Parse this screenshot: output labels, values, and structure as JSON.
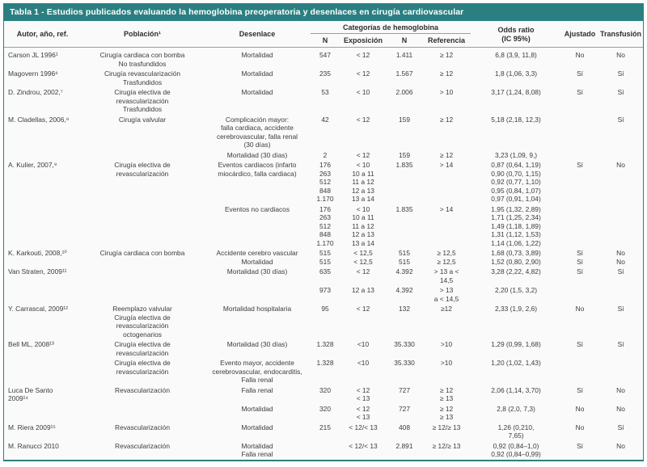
{
  "page": {
    "title_bar": "Tabla 1 - Estudios publicados evaluando la hemoglobina preoperatoria y desenlaces en cirugía cardiovascular"
  },
  "colors": {
    "teal": "#2b7f81",
    "rule": "#9e9e9e",
    "text": "#3c3c3c",
    "table_bg": "#fafafa"
  },
  "headers": {
    "author": "Autor, año, ref.",
    "population": "Población¹",
    "outcome": "Desenlace",
    "hb_group": "Categorías de hemoglobina",
    "n_exposure": "N",
    "exposure": "Exposición",
    "n_reference": "N",
    "reference": "Referencia",
    "odds_ratio": "Odds ratio\n(IC 95%)",
    "adjusted": "Ajustado",
    "transfusion": "Transfusión"
  },
  "rows": [
    {
      "author": "Carson JL 1996¹",
      "population": "Cirugía cardiaca con bomba\nNo trasfundidos",
      "outcome": "Mortalidad",
      "n1": "547",
      "exposure": "< 12",
      "n2": "1.411",
      "reference": "≥ 12",
      "odds": "6,8 (3,9, 11,8)",
      "adjusted": "No",
      "transfusion": "No"
    },
    {
      "author": "Magovern 1996⁶",
      "population": "Cirugía revascularización\nTrasfundidos",
      "outcome": "Mortalidad",
      "n1": "235",
      "exposure": "< 12",
      "n2": "1.567",
      "reference": "≥ 12",
      "odds": "1,8 (1,06, 3,3)",
      "adjusted": "Sí",
      "transfusion": "Sí"
    },
    {
      "author": "D. Zindrou, 2002,⁷",
      "population": "Cirugía electiva de\nrevascularización\nTrasfundidos",
      "outcome": "Mortalidad",
      "n1": "53",
      "exposure": "< 10",
      "n2": "2.006",
      "reference": "> 10",
      "odds": "3,17 (1,24, 8,08)",
      "adjusted": "Sí",
      "transfusion": "Sí"
    },
    {
      "author": "M. Cladellas, 2006,⁸",
      "population": "Cirugía valvular",
      "outcome": "Complicación mayor:\nfalla cardiaca, accidente\ncerebrovascular, falla renal\n(30 días)",
      "n1": "42",
      "exposure": "< 12",
      "n2": "159",
      "reference": "≥ 12",
      "odds": "5,18 (2,18, 12,3)",
      "adjusted": "",
      "transfusion": "Sí"
    },
    {
      "author": "",
      "population": "",
      "outcome": "Mortalidad (30 días)",
      "n1": "2",
      "exposure": "< 12",
      "n2": "159",
      "reference": "≥ 12",
      "odds": "3,23 (1,09, 9,)",
      "adjusted": "",
      "transfusion": ""
    },
    {
      "author": "A. Kulier, 2007,⁹",
      "population": "Cirugía electiva de\nrevascularización",
      "outcome": "Eventos cardiacos (infarto\nmiocárdico, falla cardiaca)",
      "n1": "176\n263\n512\n848\n1.170",
      "exposure": "< 10\n10 a 11\n11 a 12\n12 a 13\n13 a 14",
      "n2": "1.835",
      "reference": "> 14",
      "odds": "0,87 (0,64, 1,19)\n0,90 (0,70, 1,15)\n0,92 (0,77, 1,10)\n0,95 (0,84, 1,07)\n0,97 (0,91, 1,04)",
      "adjusted": "Sí",
      "transfusion": "No"
    },
    {
      "author": "",
      "population": "",
      "outcome": "Eventos no cardiacos",
      "n1": "176\n263\n512\n848\n1.170",
      "exposure": "< 10\n10 a 11\n11 a 12\n12 a 13\n13 a 14",
      "n2": "1.835",
      "reference": "> 14",
      "odds": "1,95 (1,32, 2,89)\n1,71 (1,25, 2,34)\n1,49 (1,18, 1,89)\n1,31 (1,12, 1,53)\n1,14 (1,06, 1,22)",
      "adjusted": "",
      "transfusion": ""
    },
    {
      "author": "K. Karkouti, 2008,¹⁰",
      "population": "Cirugía cardiaca con bomba",
      "outcome": "Accidente cerebro vascular\nMortalidad",
      "n1": "515\n515",
      "exposure": "< 12,5\n< 12,5",
      "n2": "515\n515",
      "reference": "≥ 12,5\n≥ 12,5",
      "odds": "1,68 (0,73, 3,89)\n1,52 (0,80, 2,90)",
      "adjusted": "Sí\nSí",
      "transfusion": "No\nNo"
    },
    {
      "author": "Van Straten, 2009¹¹",
      "population": "",
      "outcome": "Mortalidad (30 días)",
      "n1": "635",
      "exposure": "< 12",
      "n2": "4.392",
      "reference": "> 13 a <\n14,5",
      "odds": "3,28 (2,22, 4,82)",
      "adjusted": "Sí",
      "transfusion": "Sí"
    },
    {
      "author": "",
      "population": "",
      "outcome": "",
      "n1": "973",
      "exposure": "12 a 13",
      "n2": "4.392",
      "reference": "> 13\na < 14,5",
      "odds": "2,20 (1,5, 3,2)",
      "adjusted": "",
      "transfusion": ""
    },
    {
      "author": "Y. Carrascal, 2009¹²",
      "population": "Reemplazo valvular\nCirugía electiva de\nrevascularización\noctogenarios",
      "outcome": "Mortalidad hospitalaria",
      "n1": "95",
      "exposure": "< 12",
      "n2": "132",
      "reference": "≥12",
      "odds": "2,33 (1,9, 2,6)",
      "adjusted": "No",
      "transfusion": "Sí"
    },
    {
      "author": "Bell ML, 2008¹³",
      "population": "Cirugía electiva de\nrevascularización",
      "outcome": "Mortalidad (30 días)",
      "n1": "1.328",
      "exposure": "<10",
      "n2": "35.330",
      "reference": ">10",
      "odds": "1,29 (0,99, 1,68)",
      "adjusted": "Sí",
      "transfusion": "Sí"
    },
    {
      "author": "",
      "population": "Cirugía electiva de\nrevascularización",
      "outcome": "Evento mayor, accidente\ncerebrovascular, endocarditis,\nFalla renal",
      "n1": "1.328",
      "exposure": "<10",
      "n2": "35.330",
      "reference": ">10",
      "odds": "1,20 (1,02, 1,43)",
      "adjusted": "",
      "transfusion": ""
    },
    {
      "author": "Luca De Santo\n2009¹⁴",
      "population": "Revascularización",
      "outcome": "Falla renal",
      "n1": "320",
      "exposure": "< 12\n< 13",
      "n2": "727",
      "reference": "≥ 12\n≥ 13",
      "odds": "2,06 (1,14, 3,70)",
      "adjusted": "Sí",
      "transfusion": "No"
    },
    {
      "author": "",
      "population": "",
      "outcome": "Mortalidad",
      "n1": "320",
      "exposure": "< 12\n< 13",
      "n2": "727",
      "reference": "≥ 12\n≥ 13",
      "odds": "2,8 (2,0, 7,3)",
      "adjusted": "No",
      "transfusion": "No"
    },
    {
      "author": "M. Riera 2009¹⁵",
      "population": "Revascularización",
      "outcome": "Mortalidad",
      "n1": "215",
      "exposure": "< 12/< 13",
      "n2": "408",
      "reference": "≥ 12/≥ 13",
      "odds": "1,26 (0,210,\n7,65)",
      "adjusted": "No",
      "transfusion": "Sí"
    },
    {
      "author": "M. Ranucci 2010",
      "population": "Revascularización",
      "outcome": "Mortalidad\nFalla renal",
      "n1": "",
      "exposure": "< 12/< 13",
      "n2": "2.891",
      "reference": "≥ 12/≥ 13",
      "odds": "0,92 (0,84–1,0)\n0,92 (0,84–0,99)",
      "adjusted": "Sí",
      "transfusion": "No"
    }
  ]
}
